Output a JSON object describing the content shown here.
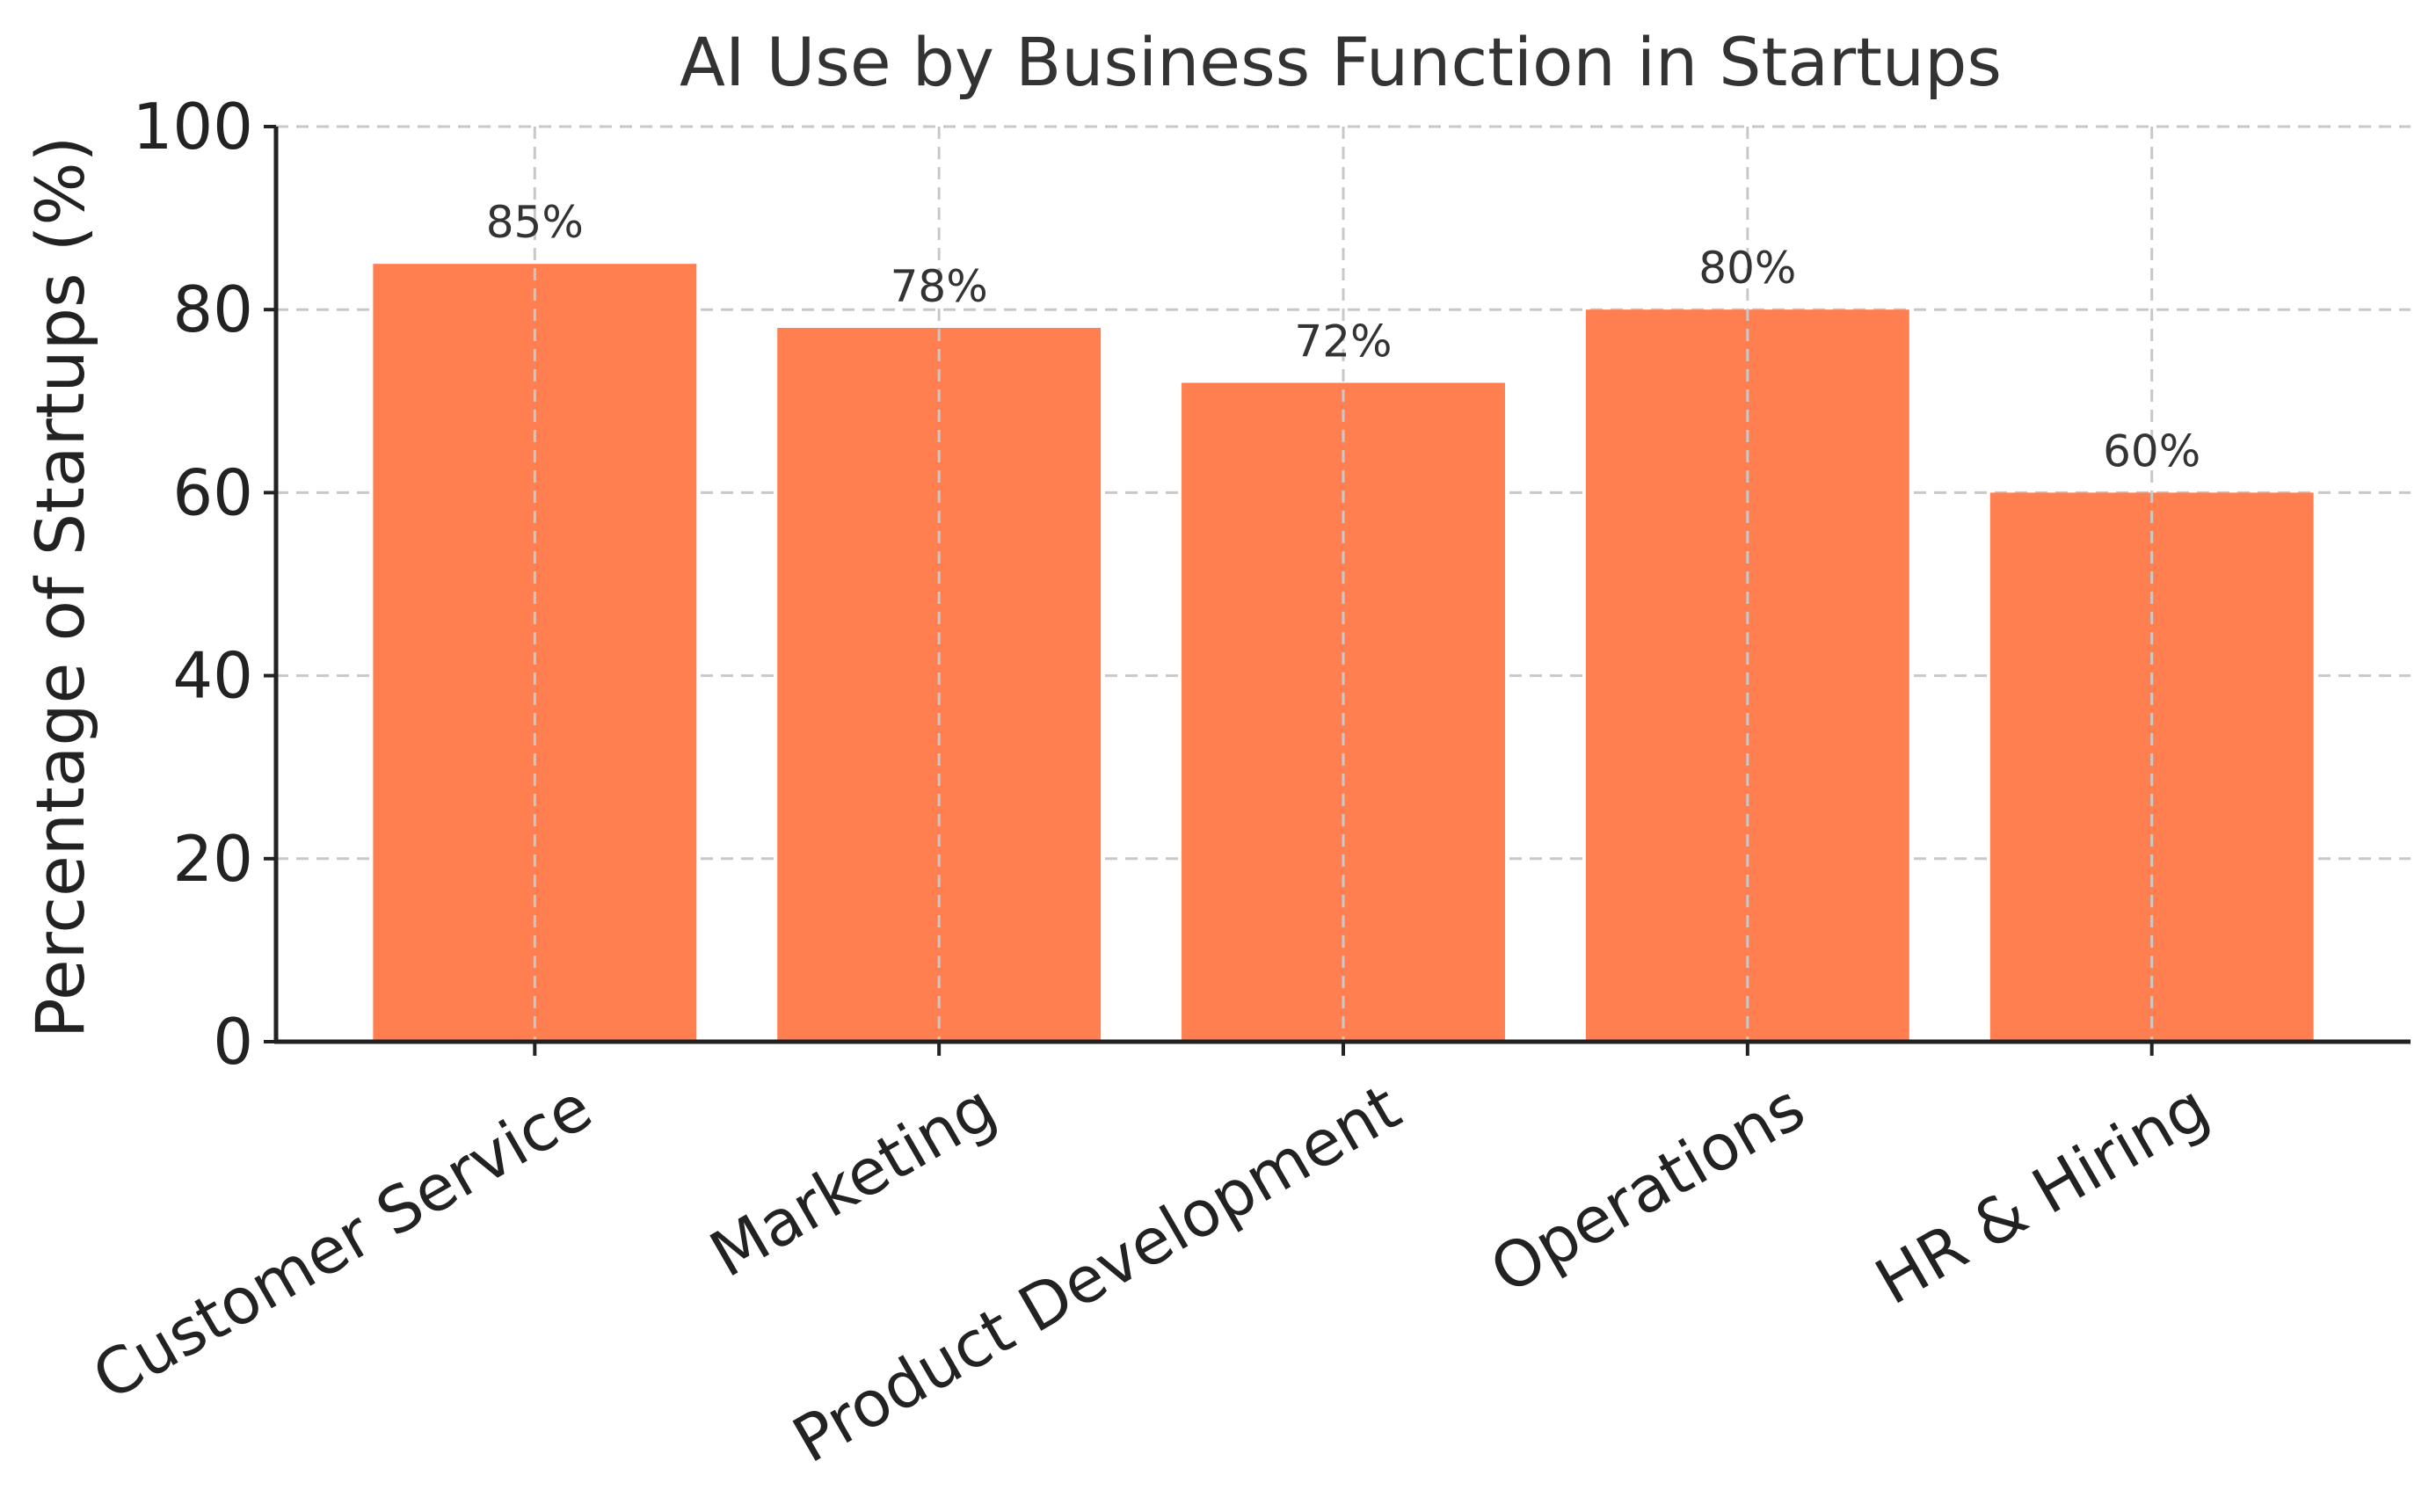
{
  "chart_data": {
    "type": "bar",
    "title": "AI Use by Business Function in Startups",
    "xlabel": "",
    "ylabel": "Percentage of Startups (%)",
    "categories": [
      "Customer Service",
      "Marketing",
      "Product Development",
      "Operations",
      "HR & Hiring"
    ],
    "values": [
      85,
      78,
      72,
      80,
      60
    ],
    "data_labels": [
      "85%",
      "78%",
      "72%",
      "80%",
      "60%"
    ],
    "ylim": [
      0,
      100
    ],
    "yticks": [
      0,
      20,
      40,
      60,
      80,
      100
    ],
    "ytick_labels": [
      "0",
      "20",
      "40",
      "60",
      "80",
      "100"
    ],
    "grid": true,
    "bar_color": "#ff7f50",
    "xtick_rotation_deg": -30
  }
}
